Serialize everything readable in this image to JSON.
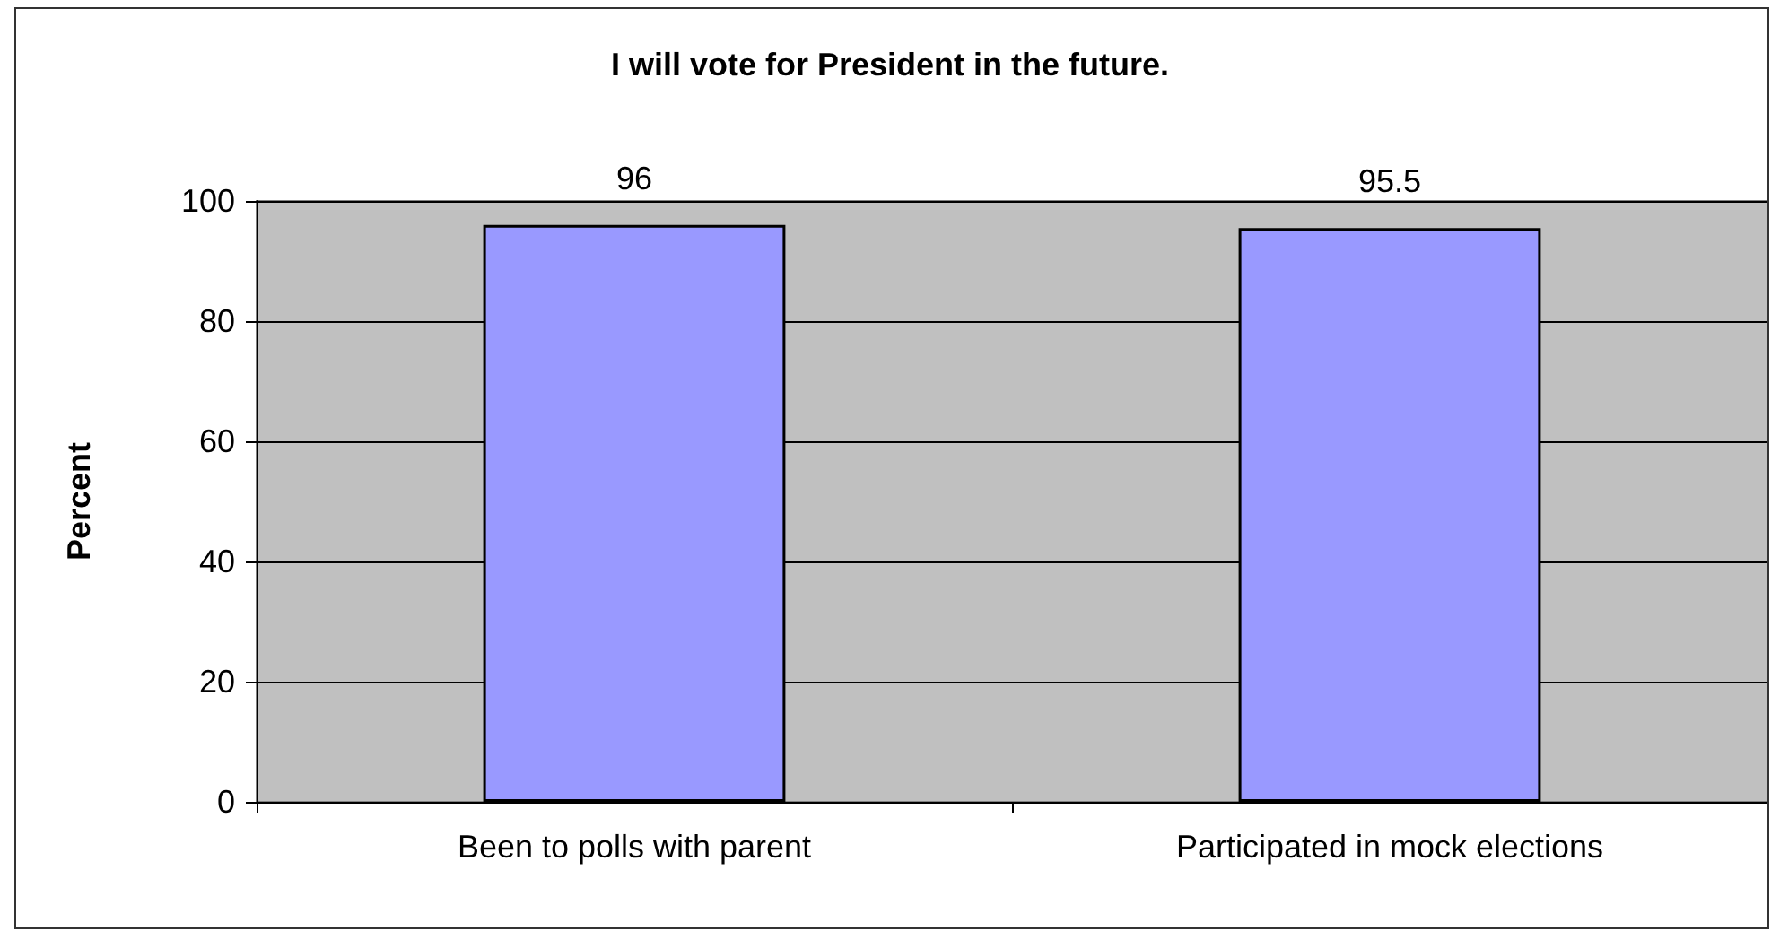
{
  "chart_data": {
    "type": "bar",
    "title": "I will vote for President in the future.",
    "ylabel": "Percent",
    "categories": [
      "Been to polls with parent",
      "Participated in mock elections"
    ],
    "values": [
      96,
      95.5
    ],
    "color": "#9999ff",
    "ylim": [
      0,
      100
    ],
    "yticks": [
      0,
      20,
      40,
      60,
      80,
      100
    ],
    "grid": "y",
    "data_labels": true
  }
}
